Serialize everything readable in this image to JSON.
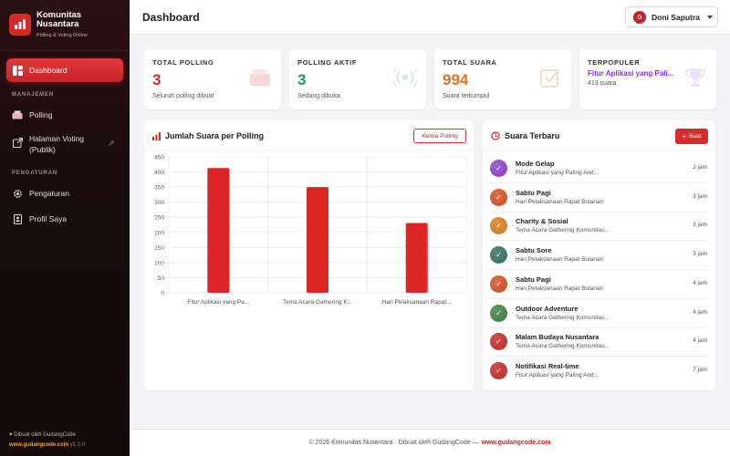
{
  "brand": {
    "name": "Komunitas Nusantara",
    "subtitle": "Polling & Voting Online"
  },
  "sidebar": {
    "dashboard_label": "Dashboard",
    "section_manajemen": "MANAJEMEN",
    "polling_label": "Polling",
    "voting_label_line1": "Halaman Voting",
    "voting_label_line2": "(Publik)",
    "section_pengaturan": "PENGATURAN",
    "pengaturan_label": "Pengaturan",
    "profil_label": "Profil Saya",
    "footer_credit": "Dibuat oleh GudangCode",
    "footer_url": "www.gudangcode.com",
    "footer_version": "v1.0.0"
  },
  "header": {
    "title": "Dashboard",
    "user_initial": "D",
    "user_name": "Doni Saputra"
  },
  "stats": {
    "total_polling_label": "TOTAL POLLING",
    "total_polling_value": "3",
    "total_polling_sub": "Seluruh polling dibuat",
    "polling_aktif_label": "POLLING AKTIF",
    "polling_aktif_value": "3",
    "polling_aktif_sub": "Sedang dibuka",
    "total_suara_label": "TOTAL SUARA",
    "total_suara_value": "994",
    "total_suara_sub": "Suara terkumpul",
    "terpopuler_label": "TERPOPULER",
    "terpopuler_value": "Fitur Aplikasi yang Pali...",
    "terpopuler_sub": "413 suara"
  },
  "chart_card": {
    "title": "Jumlah Suara per Polling",
    "button": "Kelola Polling"
  },
  "chart_data": {
    "type": "bar",
    "categories": [
      "Fitur Aplikasi yang Pa...",
      "Tema Acara Gathering K...",
      "Hari Pelaksanaan Rapat..."
    ],
    "values": [
      413,
      350,
      231
    ],
    "yticks": [
      0,
      50,
      100,
      150,
      200,
      250,
      300,
      350,
      400,
      450
    ],
    "ylim": [
      0,
      450
    ],
    "bar_color": "#dc2626",
    "grid": true,
    "title": "",
    "xlabel": "",
    "ylabel": ""
  },
  "votes_card": {
    "title": "Suara Terbaru",
    "button": "Buat",
    "items": [
      {
        "title": "Mode Gelap",
        "sub": "Fitur Aplikasi yang Paling And...",
        "time": "2 jam",
        "color": "#8b3bc7"
      },
      {
        "title": "Sabtu Pagi",
        "sub": "Hari Pelaksanaan Rapat Bulanan",
        "time": "3 jam",
        "color": "#cf4a1f"
      },
      {
        "title": "Charity & Sosial",
        "sub": "Tema Acara Gathering Komunitas...",
        "time": "3 jam",
        "color": "#d6771c"
      },
      {
        "title": "Sabtu Sore",
        "sub": "Hari Pelaksanaan Rapat Bulanan",
        "time": "3 jam",
        "color": "#2f6a5a"
      },
      {
        "title": "Sabtu Pagi",
        "sub": "Hari Pelaksanaan Rapat Bulanan",
        "time": "4 jam",
        "color": "#cf4a1f"
      },
      {
        "title": "Outdoor Adventure",
        "sub": "Tema Acara Gathering Komunitas...",
        "time": "4 jam",
        "color": "#3d7a3d"
      },
      {
        "title": "Malam Budaya Nusantara",
        "sub": "Tema Acara Gathering Komunitas...",
        "time": "4 jam",
        "color": "#c42424"
      },
      {
        "title": "Notifikasi Real-time",
        "sub": "Fitur Aplikasi yang Paling And...",
        "time": "7 jam",
        "color": "#c42424"
      }
    ]
  },
  "footer": {
    "text": "© 2026 Komunitas Nusantara · Dibuat oleh GudangCode —",
    "url": "www.gudangcode.com"
  }
}
